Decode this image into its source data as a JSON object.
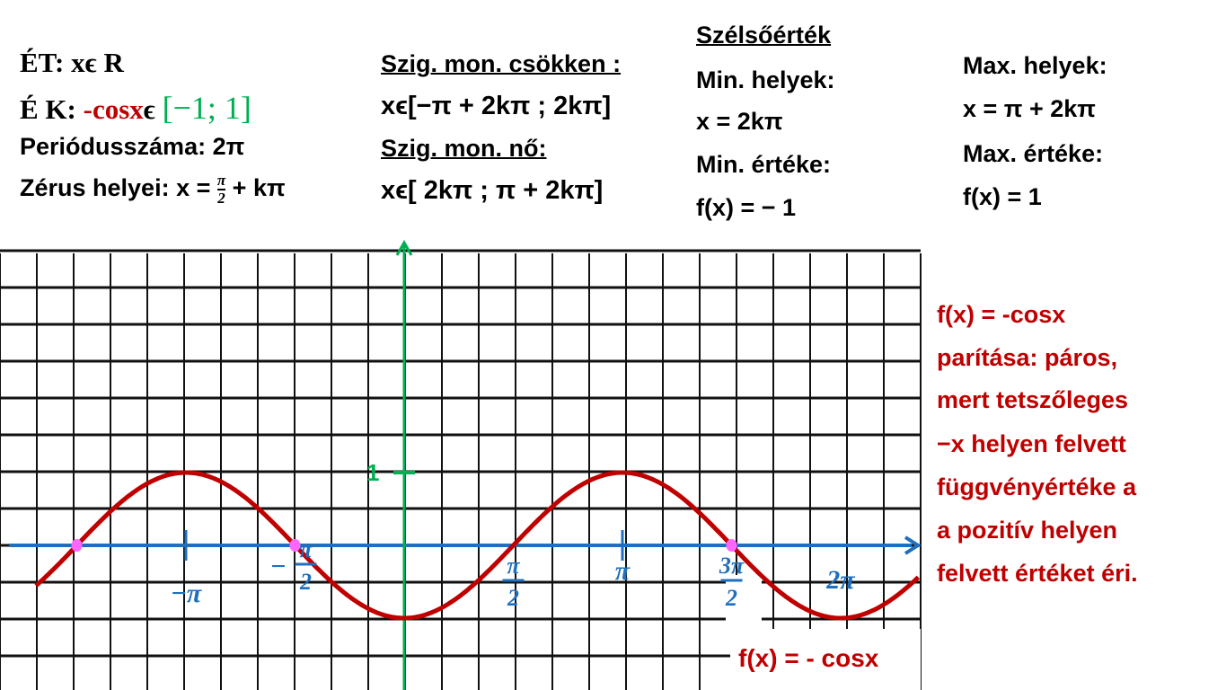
{
  "left": {
    "et_label": "ÉT:",
    "et_value": "xϵ R",
    "ek_label": "É K:",
    "ek_func": "-cosx",
    "ek_in": "ϵ",
    "ek_range": "[−1; 1]",
    "period": "Periódusszáma: 2π",
    "zero_prefix": "Zérus helyei: x =",
    "zero_num": "π",
    "zero_den": "2",
    "zero_suffix": "+ kπ"
  },
  "mono": {
    "dec_title": "Szig. mon. csökken :",
    "dec_value": "xϵ[−π + 2kπ ;  2kπ]",
    "inc_title": "Szig. mon. nő:",
    "inc_value": "xϵ[ 2kπ ; π + 2kπ]"
  },
  "extreme": {
    "title": "Szélsőérték",
    "min_places": "Min. helyek:",
    "min_x": "x = 2kπ",
    "min_value_label": "Min. értéke:",
    "min_value": "f(x) = − 1",
    "max_places": "Max. helyek:",
    "max_x": "x = π + 2kπ",
    "max_value_label": "Max. értéke:",
    "max_value": "f(x) = 1"
  },
  "parity": [
    "f(x) = -cosx",
    "parítása: páros,",
    "mert tetszőleges",
    "−x helyen felvett",
    "függvényértéke a",
    "a pozitív helyen",
    "felvett értéket éri."
  ],
  "chart_data": {
    "type": "line",
    "function": "f(x) = - cosx",
    "title": "f(x) = - cosx",
    "x_range": [
      -5.3,
      7.4
    ],
    "y_range": [
      -1,
      1
    ],
    "grid": true,
    "y_tick_labels": [
      "1"
    ],
    "x_tick_labels": [
      {
        "value": -3.1416,
        "label": "−π"
      },
      {
        "value": -1.5708,
        "label": "−",
        "num": "π",
        "den": "2"
      },
      {
        "value": 1.5708,
        "label": "",
        "num": "π",
        "den": "2"
      },
      {
        "value": 3.1416,
        "label": "π"
      },
      {
        "value": 4.7124,
        "label": "",
        "num": "3π",
        "den": "2"
      },
      {
        "value": 6.2832,
        "label": "2π"
      }
    ],
    "highlighted_zeros": [
      -4.7124,
      -1.5708,
      4.7124
    ],
    "colors": {
      "curve": "#c00000",
      "x_axis": "#1f6fbf",
      "y_axis": "#00b050",
      "zero_points": "#ff66ff",
      "grid": "#000000"
    }
  }
}
